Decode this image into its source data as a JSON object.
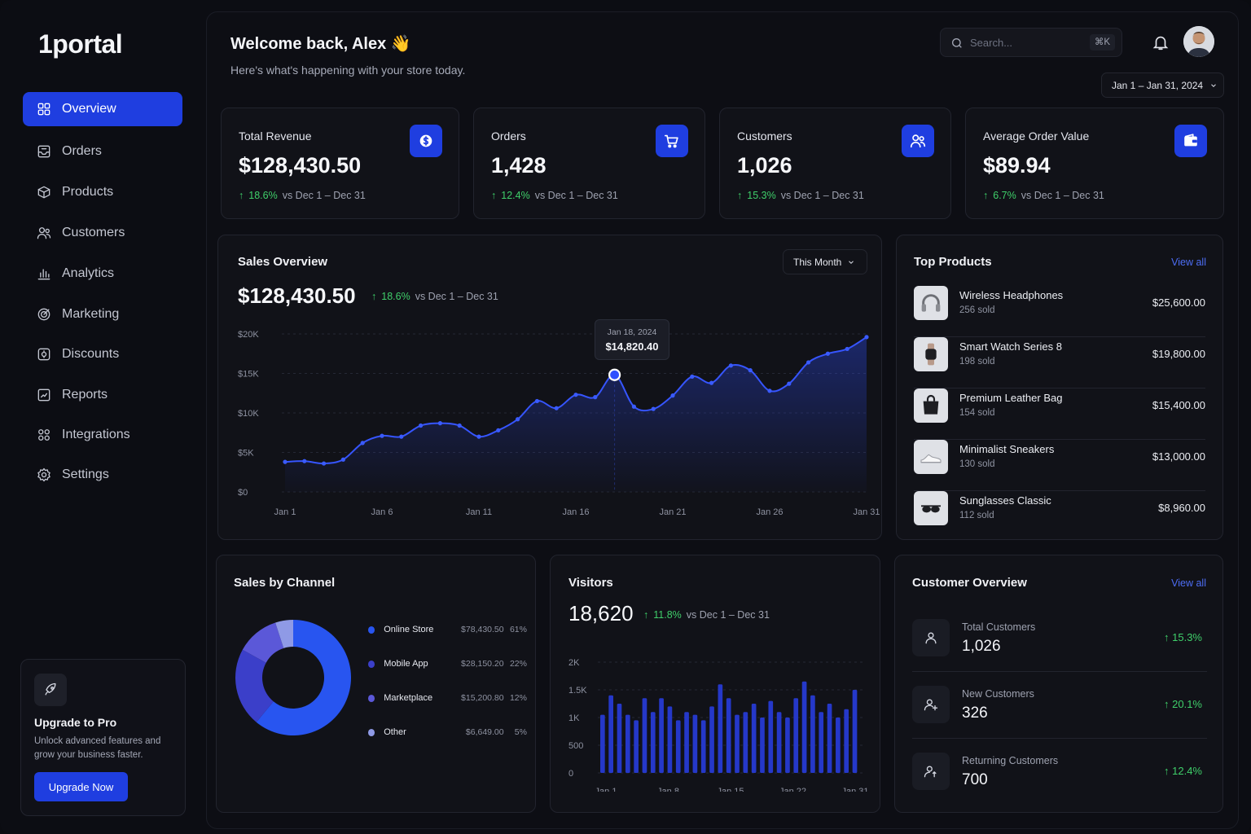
{
  "app": {
    "logo": "1portal"
  },
  "sidebar": {
    "items": [
      {
        "label": "Overview",
        "icon": "grid-icon",
        "active": true
      },
      {
        "label": "Orders",
        "icon": "inbox-icon"
      },
      {
        "label": "Products",
        "icon": "box-icon"
      },
      {
        "label": "Customers",
        "icon": "users-icon"
      },
      {
        "label": "Analytics",
        "icon": "bar-chart-icon"
      },
      {
        "label": "Marketing",
        "icon": "target-icon"
      },
      {
        "label": "Discounts",
        "icon": "tag-icon"
      },
      {
        "label": "Reports",
        "icon": "report-icon"
      },
      {
        "label": "Integrations",
        "icon": "apps-icon"
      },
      {
        "label": "Settings",
        "icon": "gear-icon"
      }
    ],
    "upgrade": {
      "title": "Upgrade to Pro",
      "text": "Unlock advanced features and grow your business faster.",
      "button": "Upgrade Now"
    }
  },
  "header": {
    "title": "Welcome back, Alex 👋",
    "subtitle": "Here's what's happening with your store today.",
    "search_placeholder": "Search...",
    "search_shortcut": "⌘K",
    "date_range": "Jan 1 – Jan 31, 2024"
  },
  "kpis": [
    {
      "label": "Total Revenue",
      "value": "$128,430.50",
      "delta": "18.6%",
      "compare": "vs Dec 1 – Dec 31",
      "icon": "dollar-icon"
    },
    {
      "label": "Orders",
      "value": "1,428",
      "delta": "12.4%",
      "compare": "vs Dec 1 – Dec 31",
      "icon": "cart-icon"
    },
    {
      "label": "Customers",
      "value": "1,026",
      "delta": "15.3%",
      "compare": "vs Dec 1 – Dec 31",
      "icon": "users-icon"
    },
    {
      "label": "Average Order Value",
      "value": "$89.94",
      "delta": "6.7%",
      "compare": "vs Dec 1 – Dec 31",
      "icon": "wallet-icon"
    }
  ],
  "sales_overview": {
    "title": "Sales Overview",
    "period": "This Month",
    "value": "$128,430.50",
    "delta": "18.6%",
    "compare": "vs Dec 1 – Dec 31",
    "tooltip": {
      "date": "Jan 18, 2024",
      "value": "$14,820.40"
    }
  },
  "top_products": {
    "title": "Top Products",
    "link": "View all",
    "items": [
      {
        "name": "Wireless Headphones",
        "sold": "256 sold",
        "price": "$25,600.00",
        "icon": "headphones-icon"
      },
      {
        "name": "Smart Watch Series 8",
        "sold": "198 sold",
        "price": "$19,800.00",
        "icon": "watch-icon"
      },
      {
        "name": "Premium Leather Bag",
        "sold": "154 sold",
        "price": "$15,400.00",
        "icon": "bag-icon"
      },
      {
        "name": "Minimalist Sneakers",
        "sold": "130 sold",
        "price": "$13,000.00",
        "icon": "sneaker-icon"
      },
      {
        "name": "Sunglasses Classic",
        "sold": "112 sold",
        "price": "$8,960.00",
        "icon": "sunglasses-icon"
      }
    ]
  },
  "sales_by_channel": {
    "title": "Sales by Channel",
    "items": [
      {
        "name": "Online Store",
        "value": "$78,430.50",
        "pct": "61%",
        "color": "#2855f0"
      },
      {
        "name": "Mobile App",
        "value": "$28,150.20",
        "pct": "22%",
        "color": "#3b3fc9"
      },
      {
        "name": "Marketplace",
        "value": "$15,200.80",
        "pct": "12%",
        "color": "#5b58d8"
      },
      {
        "name": "Other",
        "value": "$6,649.00",
        "pct": "5%",
        "color": "#8f9ae6"
      }
    ]
  },
  "visitors": {
    "title": "Visitors",
    "value": "18,620",
    "delta": "11.8%",
    "compare": "vs Dec 1 – Dec 31"
  },
  "customer_overview": {
    "title": "Customer Overview",
    "link": "View all",
    "items": [
      {
        "label": "Total Customers",
        "value": "1,026",
        "delta": "15.3%",
        "icon": "user-icon"
      },
      {
        "label": "New Customers",
        "value": "326",
        "delta": "20.1%",
        "icon": "user-plus-icon"
      },
      {
        "label": "Returning Customers",
        "value": "700",
        "delta": "12.4%",
        "icon": "user-return-icon"
      }
    ]
  },
  "chart_data": [
    {
      "type": "area",
      "title": "Sales Overview",
      "x_ticks": [
        "Jan 1",
        "Jan 6",
        "Jan 11",
        "Jan 16",
        "Jan 21",
        "Jan 26",
        "Jan 31"
      ],
      "y_ticks": [
        "$0",
        "$5K",
        "$10K",
        "$15K",
        "$20K"
      ],
      "ylim": [
        0,
        20000
      ],
      "x": [
        1,
        2,
        3,
        4,
        5,
        6,
        7,
        8,
        9,
        10,
        11,
        12,
        13,
        14,
        15,
        16,
        17,
        18,
        19,
        20,
        21,
        22,
        23,
        24,
        25,
        26,
        27,
        28,
        29,
        30,
        31
      ],
      "values": [
        3800,
        3900,
        3600,
        4100,
        6200,
        7100,
        7000,
        8400,
        8700,
        8400,
        7000,
        7800,
        9200,
        11500,
        10600,
        12300,
        12000,
        14820,
        10800,
        10500,
        12200,
        14600,
        13800,
        16000,
        15400,
        12800,
        13700,
        16400,
        17500,
        18100,
        19600
      ],
      "highlight": {
        "x": 18,
        "value": 14820.4
      }
    },
    {
      "type": "pie",
      "title": "Sales by Channel",
      "categories": [
        "Online Store",
        "Mobile App",
        "Marketplace",
        "Other"
      ],
      "values": [
        61,
        22,
        12,
        5
      ]
    },
    {
      "type": "bar",
      "title": "Visitors",
      "x_ticks": [
        "Jan 1",
        "Jan 8",
        "Jan 15",
        "Jan 22",
        "Jan 31"
      ],
      "y_ticks": [
        "0",
        "500",
        "1K",
        "1.5K",
        "2K"
      ],
      "ylim": [
        0,
        2000
      ],
      "values": [
        1050,
        1400,
        1250,
        1050,
        950,
        1350,
        1100,
        1350,
        1200,
        950,
        1100,
        1050,
        950,
        1200,
        1600,
        1350,
        1050,
        1100,
        1250,
        1000,
        1300,
        1100,
        1000,
        1350,
        1650,
        1400,
        1100,
        1250,
        1000,
        1150,
        1500
      ]
    }
  ]
}
